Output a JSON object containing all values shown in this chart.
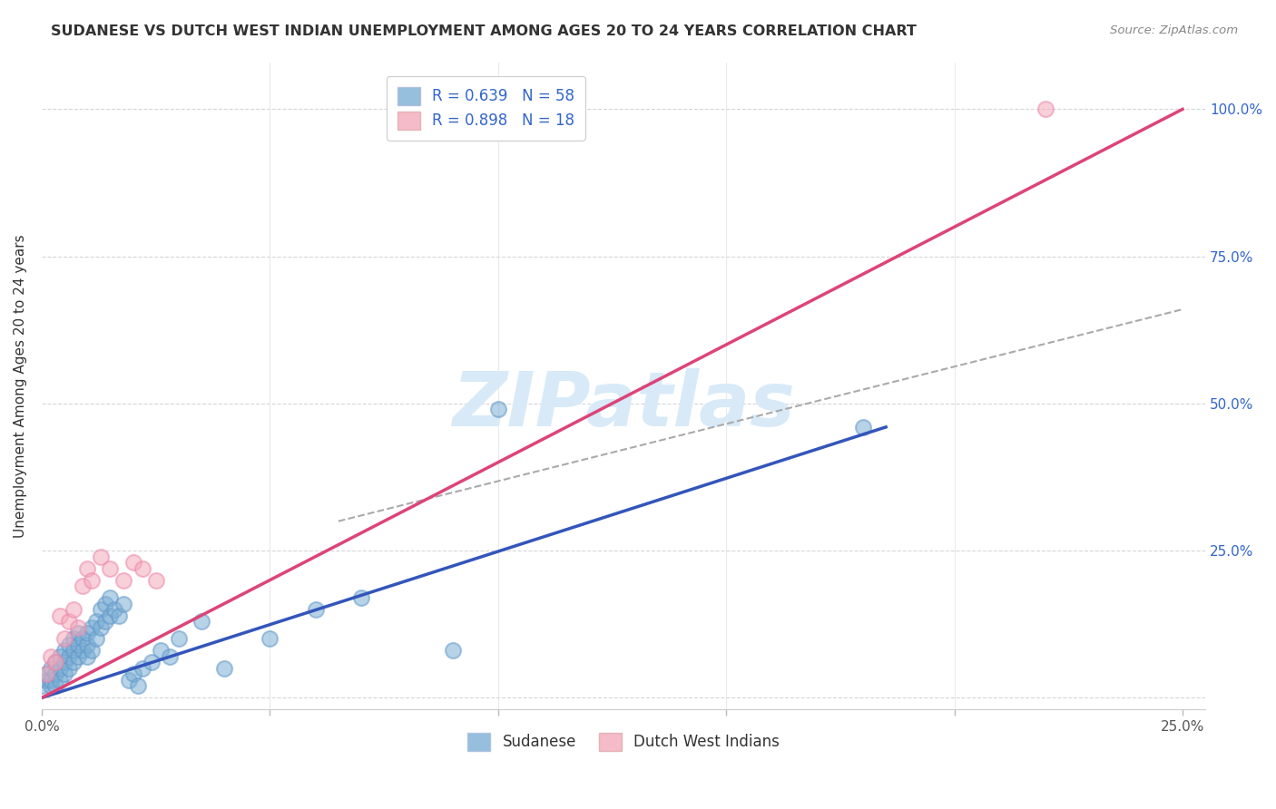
{
  "title": "SUDANESE VS DUTCH WEST INDIAN UNEMPLOYMENT AMONG AGES 20 TO 24 YEARS CORRELATION CHART",
  "source": "Source: ZipAtlas.com",
  "ylabel": "Unemployment Among Ages 20 to 24 years",
  "xlim": [
    0.0,
    0.255
  ],
  "ylim": [
    -0.02,
    1.08
  ],
  "yticks": [
    0.0,
    0.25,
    0.5,
    0.75,
    1.0
  ],
  "xticks": [
    0.0,
    0.05,
    0.1,
    0.15,
    0.2,
    0.25
  ],
  "xtick_labels": [
    "0.0%",
    "",
    "",
    "",
    "",
    "25.0%"
  ],
  "ytick_labels_right": [
    "",
    "25.0%",
    "50.0%",
    "75.0%",
    "100.0%"
  ],
  "sudanese_color": "#7BAFD4",
  "sudanese_edge": "#6699cc",
  "dutch_color": "#F4AABB",
  "dutch_edge": "#ee88aa",
  "sudanese_line_color": "#3355bb",
  "dutch_line_color": "#dd4477",
  "dashed_color": "#aaaaaa",
  "legend_label_1": "R = 0.639   N = 58",
  "legend_label_2": "R = 0.898   N = 18",
  "legend_label_bottom_1": "Sudanese",
  "legend_label_bottom_2": "Dutch West Indians",
  "text_color": "#3366cc",
  "title_color": "#333333",
  "background_color": "#ffffff",
  "grid_color": "#cccccc",
  "sudanese_line": [
    0.0,
    0.0,
    0.185,
    0.46
  ],
  "dutch_line": [
    0.0,
    0.0,
    0.25,
    1.0
  ],
  "dashed_line": [
    0.065,
    0.3,
    0.25,
    0.66
  ],
  "watermark_text": "ZIPatlas",
  "watermark_color": "#d8eaf8",
  "sud_scatter_x": [
    0.0,
    0.001,
    0.001,
    0.002,
    0.002,
    0.002,
    0.003,
    0.003,
    0.003,
    0.004,
    0.004,
    0.004,
    0.005,
    0.005,
    0.005,
    0.006,
    0.006,
    0.006,
    0.007,
    0.007,
    0.007,
    0.008,
    0.008,
    0.008,
    0.009,
    0.009,
    0.01,
    0.01,
    0.01,
    0.011,
    0.011,
    0.012,
    0.012,
    0.013,
    0.013,
    0.014,
    0.014,
    0.015,
    0.015,
    0.016,
    0.017,
    0.018,
    0.019,
    0.02,
    0.021,
    0.022,
    0.024,
    0.026,
    0.028,
    0.03,
    0.035,
    0.04,
    0.05,
    0.06,
    0.07,
    0.09,
    0.1,
    0.18
  ],
  "sud_scatter_y": [
    0.02,
    0.03,
    0.04,
    0.02,
    0.03,
    0.05,
    0.02,
    0.04,
    0.06,
    0.03,
    0.05,
    0.07,
    0.04,
    0.06,
    0.08,
    0.05,
    0.07,
    0.09,
    0.06,
    0.08,
    0.1,
    0.07,
    0.09,
    0.11,
    0.08,
    0.1,
    0.07,
    0.09,
    0.11,
    0.08,
    0.12,
    0.1,
    0.13,
    0.12,
    0.15,
    0.13,
    0.16,
    0.14,
    0.17,
    0.15,
    0.14,
    0.16,
    0.03,
    0.04,
    0.02,
    0.05,
    0.06,
    0.08,
    0.07,
    0.1,
    0.13,
    0.05,
    0.1,
    0.15,
    0.17,
    0.08,
    0.49,
    0.46
  ],
  "dutch_scatter_x": [
    0.001,
    0.002,
    0.003,
    0.004,
    0.005,
    0.006,
    0.007,
    0.008,
    0.009,
    0.01,
    0.011,
    0.013,
    0.015,
    0.018,
    0.02,
    0.022,
    0.025,
    0.22
  ],
  "dutch_scatter_y": [
    0.04,
    0.07,
    0.06,
    0.14,
    0.1,
    0.13,
    0.15,
    0.12,
    0.19,
    0.22,
    0.2,
    0.24,
    0.22,
    0.2,
    0.23,
    0.22,
    0.2,
    1.0
  ]
}
